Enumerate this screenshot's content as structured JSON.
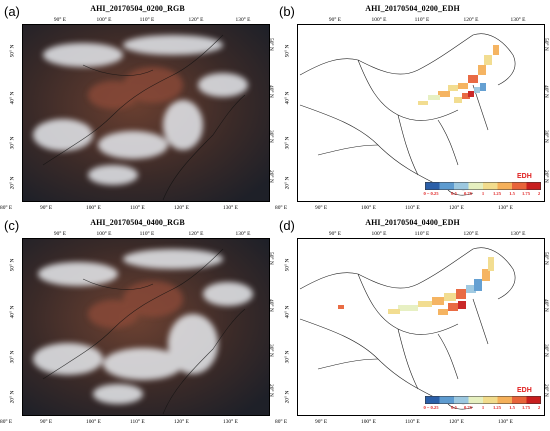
{
  "panels": [
    {
      "label": "(a)",
      "title": "AHI_20170504_0200_RGB",
      "type": "rgb"
    },
    {
      "label": "(b)",
      "title": "AHI_20170504_0200_EDH",
      "type": "edh"
    },
    {
      "label": "(c)",
      "title": "AHI_20170504_0400_RGB",
      "type": "rgb"
    },
    {
      "label": "(d)",
      "title": "AHI_20170504_0400_EDH",
      "type": "edh"
    }
  ],
  "axes": {
    "lon_top": [
      "90° E",
      "100° E",
      "110° E",
      "120° E",
      "130° E"
    ],
    "lon_bottom": [
      "80° E",
      "90° E",
      "100° E",
      "110° E",
      "120° E",
      "130° E"
    ],
    "lat": [
      "20° N",
      "30° N",
      "40° N",
      "50° N"
    ]
  },
  "colorbar": {
    "title": "EDH",
    "ticks": [
      "0 ~ 0.25",
      "0.5",
      "0.75",
      "1",
      "1.25",
      "1.5",
      "1.75",
      "2"
    ],
    "colors": [
      "#2b5fa8",
      "#5d9bd0",
      "#9cc8e0",
      "#e6f0c0",
      "#f2dc8c",
      "#f5b05a",
      "#e8643a",
      "#c81e1e"
    ]
  }
}
